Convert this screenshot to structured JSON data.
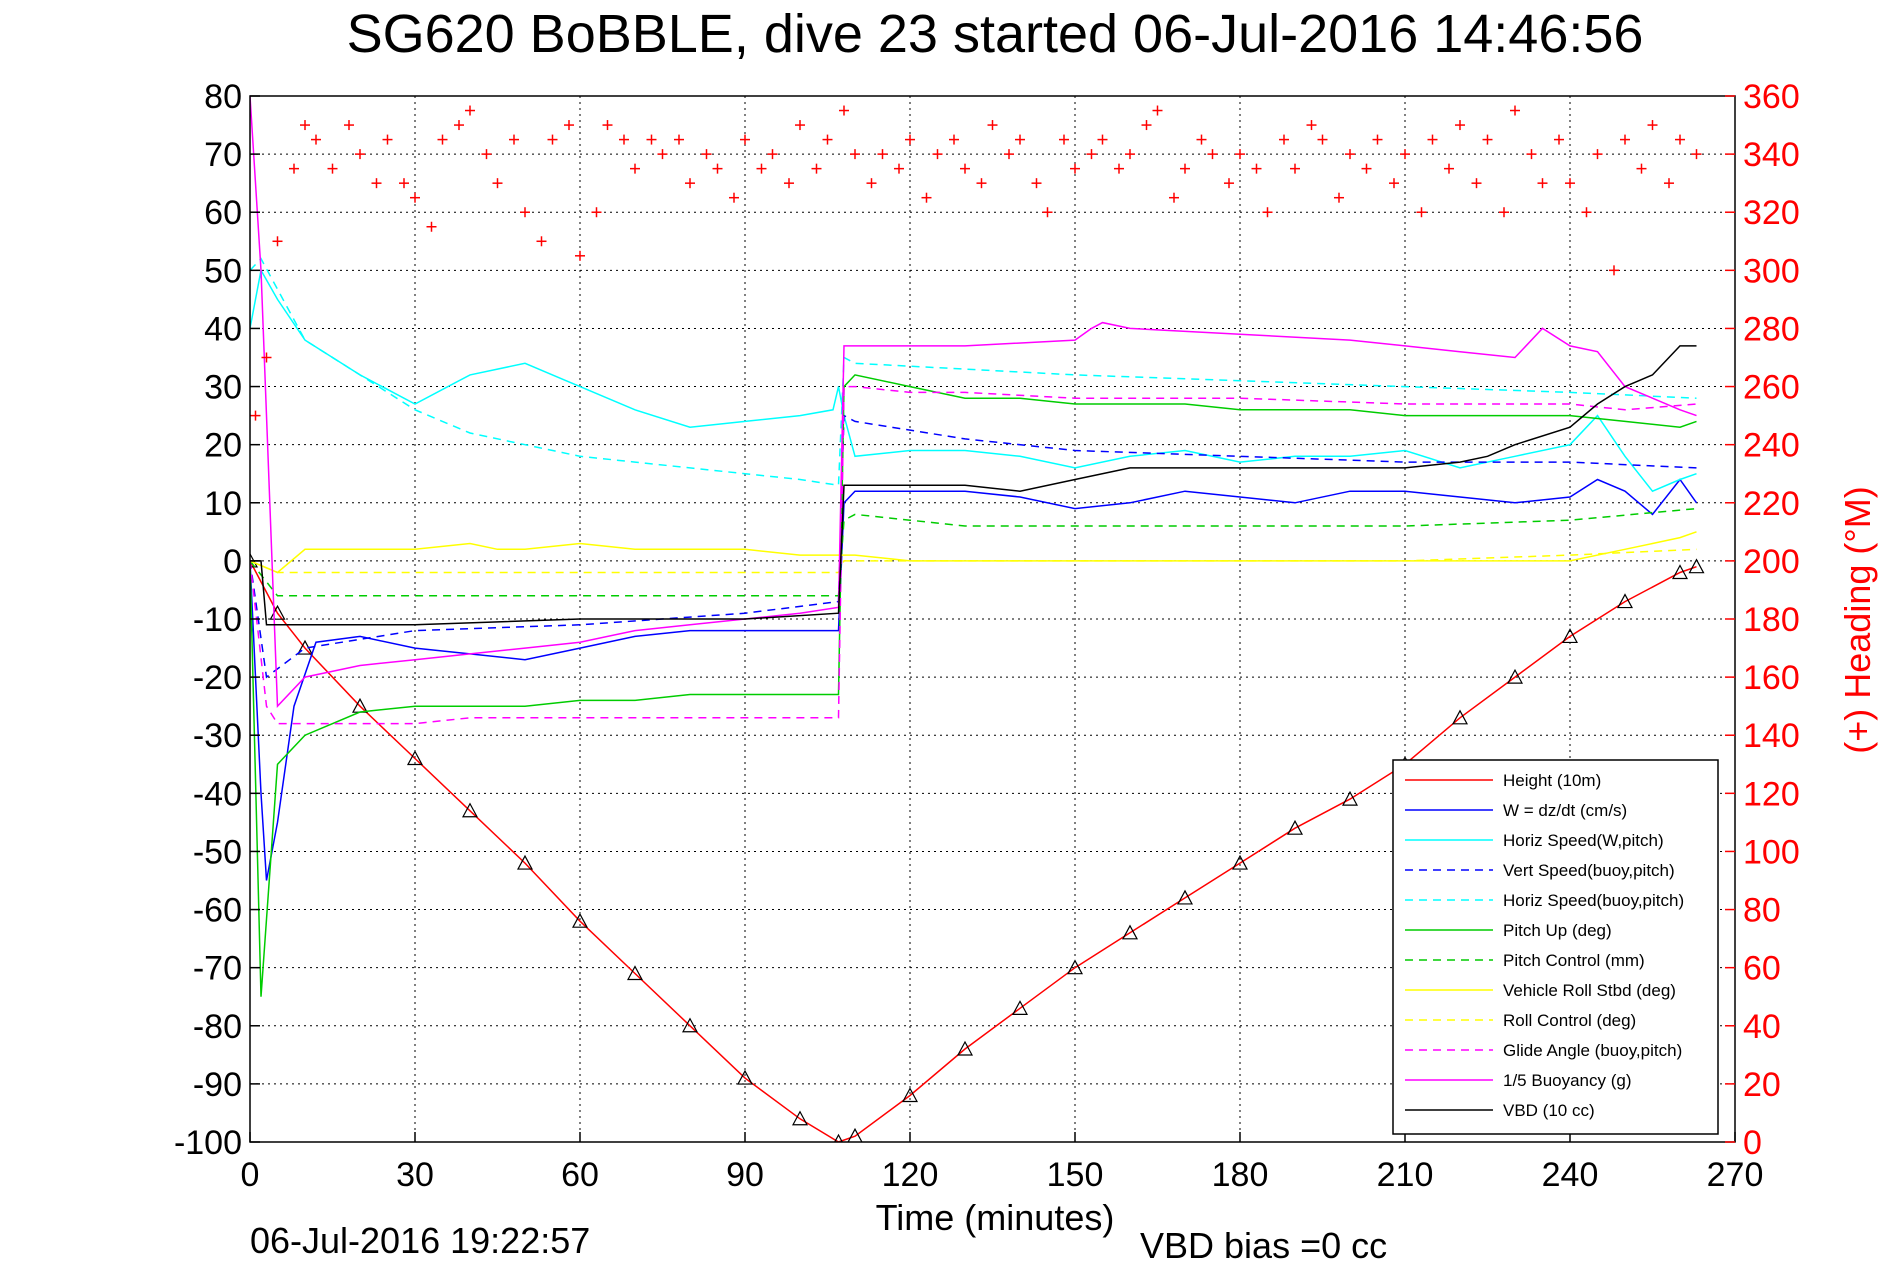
{
  "chart_data": {
    "type": "line",
    "title": "SG620 BoBBLE, dive 23 started 06-Jul-2016 14:46:56",
    "xlabel": "Time (minutes)",
    "ylabel": "",
    "ylabel_right": "(+) Heading (°M)",
    "xlim": [
      0,
      270
    ],
    "ylim": [
      -100,
      80
    ],
    "ylim_right": [
      0,
      360
    ],
    "x_ticks": [
      0,
      30,
      60,
      90,
      120,
      150,
      180,
      210,
      240,
      270
    ],
    "y_ticks": [
      80,
      70,
      60,
      50,
      40,
      30,
      20,
      10,
      0,
      -10,
      -20,
      -30,
      -40,
      -50,
      -60,
      -70,
      -80,
      -90,
      -100
    ],
    "y_ticks_right": [
      360,
      340,
      320,
      300,
      280,
      260,
      240,
      220,
      200,
      180,
      160,
      140,
      120,
      100,
      80,
      60,
      40,
      20,
      0
    ],
    "grid": true,
    "legend_position": "bottom-right",
    "footer_left": "06-Jul-2016 19:22:57",
    "footer_right": "VBD bias =0 cc",
    "series": [
      {
        "name": "Height (10m)",
        "color": "#ff0000",
        "style": "solid",
        "x": [
          0,
          5,
          10,
          20,
          30,
          40,
          50,
          60,
          70,
          80,
          90,
          100,
          107,
          110,
          120,
          130,
          140,
          150,
          160,
          170,
          180,
          190,
          200,
          210,
          220,
          230,
          240,
          250,
          260,
          263
        ],
        "y": [
          0,
          -9,
          -15,
          -25,
          -34,
          -43,
          -52,
          -62,
          -71,
          -80,
          -89,
          -96,
          -100,
          -99,
          -92,
          -84,
          -77,
          -70,
          -64,
          -58,
          -52,
          -46,
          -41,
          -35,
          -27,
          -20,
          -13,
          -7,
          -2,
          -1
        ]
      },
      {
        "name": "W = dz/dt (cm/s)",
        "color": "#0000ff",
        "style": "solid",
        "x": [
          0,
          2,
          3,
          5,
          8,
          12,
          20,
          30,
          40,
          50,
          60,
          70,
          80,
          90,
          100,
          106,
          107,
          108,
          110,
          120,
          130,
          140,
          150,
          160,
          170,
          180,
          190,
          200,
          210,
          220,
          230,
          240,
          245,
          250,
          255,
          260,
          263
        ],
        "y": [
          0,
          -40,
          -55,
          -45,
          -25,
          -14,
          -13,
          -15,
          -16,
          -17,
          -15,
          -13,
          -12,
          -12,
          -12,
          -12,
          -12,
          10,
          12,
          12,
          12,
          11,
          9,
          10,
          12,
          11,
          10,
          12,
          12,
          11,
          10,
          11,
          14,
          12,
          8,
          14,
          10
        ]
      },
      {
        "name": "Horiz Speed(W,pitch)",
        "color": "#00ffff",
        "style": "solid",
        "x": [
          0,
          2,
          5,
          10,
          20,
          30,
          40,
          50,
          60,
          70,
          80,
          90,
          100,
          106,
          107,
          108,
          110,
          120,
          130,
          140,
          150,
          160,
          170,
          180,
          190,
          200,
          210,
          220,
          230,
          240,
          245,
          250,
          255,
          260,
          263
        ],
        "y": [
          40,
          50,
          45,
          38,
          32,
          27,
          32,
          34,
          30,
          26,
          23,
          24,
          25,
          26,
          30,
          25,
          18,
          19,
          19,
          18,
          16,
          18,
          19,
          17,
          18,
          18,
          19,
          16,
          18,
          20,
          25,
          18,
          12,
          14,
          15
        ]
      },
      {
        "name": "Vert Speed(buoy,pitch)",
        "color": "#0000ff",
        "style": "dashed",
        "x": [
          0,
          3,
          10,
          30,
          60,
          90,
          107,
          108,
          110,
          130,
          150,
          180,
          210,
          240,
          263
        ],
        "y": [
          0,
          -20,
          -15,
          -12,
          -11,
          -9,
          -7,
          25,
          24,
          21,
          19,
          18,
          17,
          17,
          16
        ]
      },
      {
        "name": "Horiz Speed(buoy,pitch)",
        "color": "#00ffff",
        "style": "dashed",
        "x": [
          0,
          2,
          10,
          20,
          30,
          40,
          50,
          60,
          70,
          80,
          90,
          100,
          107,
          108,
          110,
          130,
          150,
          180,
          210,
          240,
          263
        ],
        "y": [
          50,
          52,
          38,
          32,
          26,
          22,
          20,
          18,
          17,
          16,
          15,
          14,
          13,
          35,
          34,
          33,
          32,
          31,
          30,
          29,
          28
        ]
      },
      {
        "name": "Pitch Up (deg)",
        "color": "#00cc00",
        "style": "solid",
        "x": [
          0,
          2,
          5,
          10,
          20,
          30,
          40,
          50,
          60,
          70,
          80,
          90,
          100,
          107,
          108,
          110,
          120,
          130,
          140,
          150,
          160,
          170,
          180,
          190,
          200,
          210,
          220,
          230,
          240,
          250,
          260,
          263
        ],
        "y": [
          0,
          -75,
          -35,
          -30,
          -26,
          -25,
          -25,
          -25,
          -24,
          -24,
          -23,
          -23,
          -23,
          -23,
          30,
          32,
          30,
          28,
          28,
          27,
          27,
          27,
          26,
          26,
          26,
          25,
          25,
          25,
          25,
          24,
          23,
          24
        ]
      },
      {
        "name": "Pitch Control (mm)",
        "color": "#00cc00",
        "style": "dashed",
        "x": [
          0,
          5,
          10,
          30,
          60,
          90,
          107,
          108,
          110,
          120,
          130,
          150,
          180,
          210,
          240,
          263
        ],
        "y": [
          0,
          -6,
          -6,
          -6,
          -6,
          -6,
          -6,
          7,
          8,
          7,
          6,
          6,
          6,
          6,
          7,
          9
        ]
      },
      {
        "name": "Vehicle Roll Stbd (deg)",
        "color": "#ffff00",
        "style": "solid",
        "x": [
          0,
          5,
          10,
          20,
          30,
          40,
          45,
          50,
          60,
          70,
          80,
          90,
          100,
          107,
          108,
          110,
          120,
          130,
          140,
          150,
          160,
          170,
          180,
          190,
          200,
          210,
          220,
          230,
          240,
          250,
          255,
          260,
          263
        ],
        "y": [
          0,
          -2,
          2,
          2,
          2,
          3,
          2,
          2,
          3,
          2,
          2,
          2,
          1,
          1,
          1,
          1,
          0,
          0,
          0,
          0,
          0,
          0,
          0,
          0,
          0,
          0,
          0,
          0,
          0,
          2,
          3,
          4,
          5
        ]
      },
      {
        "name": "Roll Control (deg)",
        "color": "#ffff00",
        "style": "dashed",
        "x": [
          0,
          5,
          10,
          30,
          60,
          90,
          107,
          108,
          110,
          150,
          210,
          240,
          263
        ],
        "y": [
          0,
          -2,
          -2,
          -2,
          -2,
          -2,
          -2,
          0,
          0,
          0,
          0,
          1,
          2
        ]
      },
      {
        "name": "Glide Angle (buoy,pitch)",
        "color": "#ff00ff",
        "style": "dashed",
        "x": [
          0,
          3,
          5,
          10,
          20,
          30,
          40,
          50,
          60,
          70,
          80,
          90,
          100,
          107,
          108,
          110,
          120,
          130,
          150,
          180,
          210,
          240,
          250,
          263
        ],
        "y": [
          0,
          -25,
          -28,
          -28,
          -28,
          -28,
          -27,
          -27,
          -27,
          -27,
          -27,
          -27,
          -27,
          -27,
          30,
          30,
          29,
          29,
          28,
          28,
          27,
          27,
          26,
          27
        ]
      },
      {
        "name": "1/5 Buoyancy (g)",
        "color": "#ff00ff",
        "style": "solid",
        "x": [
          0,
          2,
          5,
          10,
          20,
          30,
          40,
          50,
          60,
          70,
          80,
          90,
          100,
          107,
          108,
          110,
          130,
          150,
          153,
          155,
          160,
          180,
          200,
          210,
          220,
          230,
          235,
          240,
          245,
          250,
          255,
          260,
          263
        ],
        "y": [
          80,
          50,
          -25,
          -20,
          -18,
          -17,
          -16,
          -15,
          -14,
          -12,
          -11,
          -10,
          -9,
          -8,
          37,
          37,
          37,
          38,
          40,
          41,
          40,
          39,
          38,
          37,
          36,
          35,
          40,
          37,
          36,
          30,
          28,
          26,
          25
        ]
      },
      {
        "name": "VBD (10 cc)",
        "color": "#000000",
        "style": "solid",
        "x": [
          0,
          2,
          3,
          30,
          60,
          90,
          107,
          108,
          130,
          140,
          150,
          160,
          180,
          210,
          220,
          225,
          230,
          240,
          245,
          250,
          255,
          260,
          263
        ],
        "y": [
          0,
          0,
          -11,
          -11,
          -10,
          -10,
          -9,
          13,
          13,
          12,
          14,
          16,
          16,
          16,
          17,
          18,
          20,
          23,
          27,
          30,
          32,
          37,
          37
        ]
      },
      {
        "name": "",
        "color": "#ff0000",
        "style": "plus",
        "axis": "right",
        "x": [
          1,
          3,
          5,
          8,
          10,
          12,
          15,
          18,
          20,
          23,
          25,
          28,
          30,
          33,
          35,
          38,
          40,
          43,
          45,
          48,
          50,
          53,
          55,
          58,
          60,
          63,
          65,
          68,
          70,
          73,
          75,
          78,
          80,
          83,
          85,
          88,
          90,
          93,
          95,
          98,
          100,
          103,
          105,
          108,
          110,
          113,
          115,
          118,
          120,
          123,
          125,
          128,
          130,
          133,
          135,
          138,
          140,
          143,
          145,
          148,
          150,
          153,
          155,
          158,
          160,
          163,
          165,
          168,
          170,
          173,
          175,
          178,
          180,
          183,
          185,
          188,
          190,
          193,
          195,
          198,
          200,
          203,
          205,
          208,
          210,
          213,
          215,
          218,
          220,
          223,
          225,
          228,
          230,
          233,
          235,
          238,
          240,
          243,
          245,
          248,
          250,
          253,
          255,
          258,
          260,
          263
        ],
        "y": [
          250,
          270,
          310,
          335,
          350,
          345,
          335,
          350,
          340,
          330,
          345,
          330,
          325,
          315,
          345,
          350,
          355,
          340,
          330,
          345,
          320,
          310,
          345,
          350,
          305,
          320,
          350,
          345,
          335,
          345,
          340,
          345,
          330,
          340,
          335,
          325,
          345,
          335,
          340,
          330,
          350,
          335,
          345,
          355,
          340,
          330,
          340,
          335,
          345,
          325,
          340,
          345,
          335,
          330,
          350,
          340,
          345,
          330,
          320,
          345,
          335,
          340,
          345,
          335,
          340,
          350,
          355,
          325,
          335,
          345,
          340,
          330,
          340,
          335,
          320,
          345,
          335,
          350,
          345,
          325,
          340,
          335,
          345,
          330,
          340,
          320,
          345,
          335,
          350,
          330,
          345,
          320,
          355,
          340,
          330,
          345,
          330,
          320,
          340,
          300,
          345,
          335,
          350,
          330,
          345,
          340
        ]
      }
    ]
  }
}
